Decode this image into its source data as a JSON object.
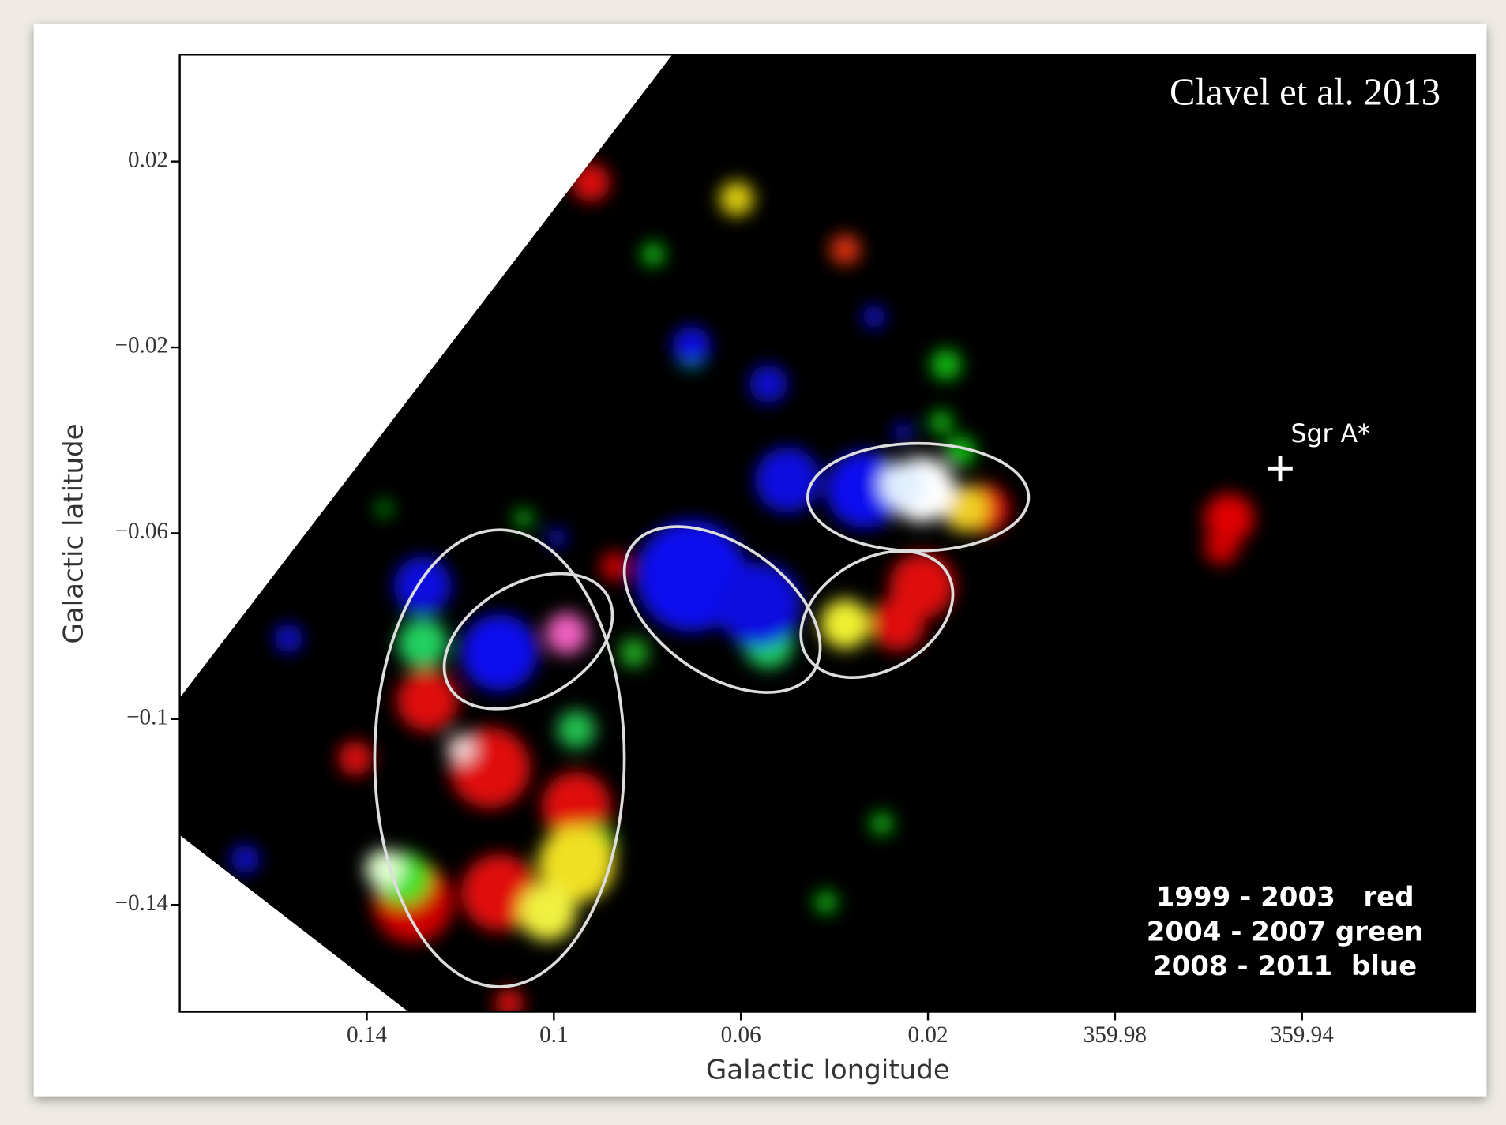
{
  "chart_data": {
    "type": "image",
    "x_label": "Galactic longitude",
    "y_label": "Galactic latitude",
    "xlim": [
      0.18,
      -0.097
    ],
    "ylim": [
      -0.163,
      0.043
    ],
    "xticks": [
      0.14,
      0.1,
      0.06,
      0.02,
      {
        "value": -0.02,
        "label": "359.98"
      },
      {
        "value": -0.06,
        "label": "359.94"
      }
    ],
    "yticks": [
      0.02,
      {
        "value": -0.02,
        "label": "−0.02"
      },
      {
        "value": -0.06,
        "label": "−0.06"
      },
      {
        "value": -0.1,
        "label": "−0.1"
      },
      {
        "value": -0.14,
        "label": "−0.14"
      }
    ],
    "annotations": [
      "Clavel et al. 2013",
      "Sgr A*",
      "1999 - 2003   red",
      "2004 - 2007 green",
      "2008 - 2011  blue"
    ]
  }
}
